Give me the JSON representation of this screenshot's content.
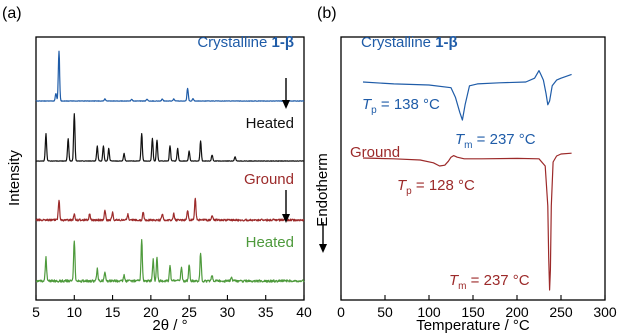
{
  "colors": {
    "crystalline": "#1f5ca8",
    "heated": "#111111",
    "ground": "#9c2a2a",
    "heated_ground": "#4e9a3c"
  },
  "panel_a": {
    "label": "(a)",
    "ylabel": "Intensity",
    "xlabel": "2θ / °",
    "xticks": [
      "5",
      "10",
      "15",
      "20",
      "25",
      "30",
      "35",
      "40"
    ],
    "trace_labels": {
      "crystalline_prefix": "Crystalline ",
      "crystalline_bold": "1-β",
      "heated1": "Heated",
      "ground": "Ground",
      "heated2": "Heated"
    }
  },
  "panel_b": {
    "label": "(b)",
    "ylabel": "Endotherm",
    "xlabel": "Temperature / °C",
    "xticks": [
      "0",
      "50",
      "100",
      "150",
      "200",
      "250",
      "300"
    ],
    "trace_labels": {
      "crystalline_prefix": "Crystalline ",
      "crystalline_bold": "1-β",
      "ground": "Ground"
    },
    "annotations": {
      "tp_crystalline": {
        "sym": "T",
        "sub": "p",
        "val": " = 138 °C"
      },
      "tm_crystalline": {
        "sym": "T",
        "sub": "m",
        "val": " = 237 °C"
      },
      "tp_ground": {
        "sym": "T",
        "sub": "p",
        "val": " = 128 °C"
      },
      "tm_ground": {
        "sym": "T",
        "sub": "m",
        "val": " = 237 °C"
      }
    }
  },
  "chart_data": [
    {
      "type": "line",
      "panel": "(a)",
      "xlabel": "2θ / °",
      "ylabel": "Intensity",
      "xlim": [
        5,
        40
      ],
      "series": [
        {
          "name": "Crystalline 1-β",
          "peaks": [
            [
              8.0,
              1.0
            ],
            [
              7.6,
              0.15
            ],
            [
              14.0,
              0.04
            ],
            [
              17.5,
              0.03
            ],
            [
              19.5,
              0.04
            ],
            [
              21.5,
              0.04
            ],
            [
              23.0,
              0.04
            ],
            [
              24.8,
              0.25
            ],
            [
              25.5,
              0.05
            ]
          ]
        },
        {
          "name": "Heated",
          "peaks": [
            [
              6.3,
              0.55
            ],
            [
              9.2,
              0.45
            ],
            [
              10.0,
              0.95
            ],
            [
              13.0,
              0.3
            ],
            [
              13.8,
              0.3
            ],
            [
              14.5,
              0.25
            ],
            [
              16.5,
              0.15
            ],
            [
              18.8,
              0.55
            ],
            [
              20.2,
              0.45
            ],
            [
              20.8,
              0.42
            ],
            [
              22.5,
              0.3
            ],
            [
              23.5,
              0.25
            ],
            [
              25.0,
              0.2
            ],
            [
              26.5,
              0.4
            ],
            [
              28.0,
              0.12
            ],
            [
              31.0,
              0.08
            ]
          ]
        },
        {
          "name": "Ground",
          "peaks": [
            [
              8.0,
              0.5
            ],
            [
              10.0,
              0.15
            ],
            [
              12.0,
              0.15
            ],
            [
              14.0,
              0.25
            ],
            [
              15.0,
              0.2
            ],
            [
              17.0,
              0.15
            ],
            [
              19.0,
              0.2
            ],
            [
              21.5,
              0.15
            ],
            [
              23.0,
              0.15
            ],
            [
              24.8,
              0.25
            ],
            [
              25.8,
              0.55
            ],
            [
              28.0,
              0.1
            ]
          ]
        },
        {
          "name": "Heated",
          "peaks": [
            [
              6.3,
              0.5
            ],
            [
              10.0,
              0.85
            ],
            [
              13.0,
              0.25
            ],
            [
              14.0,
              0.2
            ],
            [
              16.5,
              0.12
            ],
            [
              18.8,
              0.85
            ],
            [
              20.3,
              0.45
            ],
            [
              20.8,
              0.5
            ],
            [
              22.5,
              0.3
            ],
            [
              24.0,
              0.3
            ],
            [
              25.0,
              0.35
            ],
            [
              26.5,
              0.6
            ],
            [
              28.0,
              0.12
            ],
            [
              30.5,
              0.08
            ]
          ]
        }
      ]
    },
    {
      "type": "line",
      "panel": "(b)",
      "xlabel": "Temperature / °C",
      "ylabel": "Endotherm",
      "xlim": [
        0,
        300
      ],
      "series": [
        {
          "name": "Crystalline 1-β",
          "x": [
            25,
            60,
            100,
            125,
            130,
            135,
            138,
            141,
            146,
            155,
            180,
            210,
            220,
            225,
            227,
            230,
            233,
            235,
            237,
            240,
            245,
            250,
            262
          ],
          "y": [
            0,
            -0.05,
            -0.08,
            -0.15,
            -0.4,
            -0.8,
            -1.0,
            -0.6,
            -0.1,
            -0.05,
            -0.02,
            0,
            0.1,
            0.3,
            0.2,
            0.05,
            -0.3,
            -0.6,
            -0.5,
            -0.1,
            0.05,
            0.1,
            0.2
          ]
        },
        {
          "name": "Ground",
          "x": [
            25,
            60,
            90,
            105,
            112,
            118,
            122,
            125,
            128,
            132,
            140,
            160,
            200,
            225,
            232,
            235,
            236,
            237,
            238,
            239,
            241,
            245,
            250,
            262
          ],
          "y": [
            0,
            -0.02,
            -0.05,
            -0.12,
            -0.2,
            -0.18,
            -0.08,
            0.02,
            0.06,
            0.02,
            -0.02,
            -0.02,
            -0.01,
            -0.02,
            -0.2,
            -1.2,
            -2.5,
            -3.3,
            -2.8,
            -1.2,
            -0.1,
            0.05,
            0.1,
            0.12
          ]
        }
      ],
      "annotations": [
        "Tp = 138 °C",
        "Tm = 237 °C",
        "Tp = 128 °C",
        "Tm = 237 °C"
      ]
    }
  ]
}
